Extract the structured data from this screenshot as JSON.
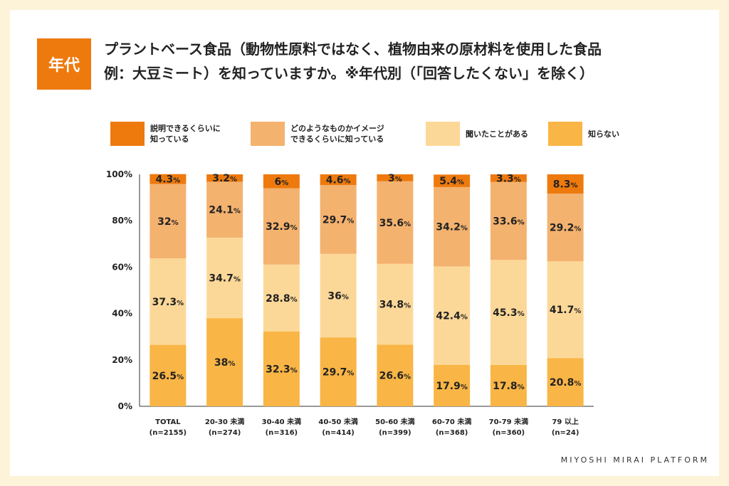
{
  "tag": "年代",
  "title_line1": "プラントベース食品（動物性原料ではなく、植物由来の原材料を使用した食品",
  "title_line2": "例：大豆ミート）を知っていますか。※年代別（「回答したくない」を除く）",
  "brand": "MIYOSHI MIRAI PLATFORM",
  "colors": [
    "#ee7a0e",
    "#f4b26f",
    "#fcd898",
    "#f9b545"
  ],
  "chart_data": {
    "type": "bar",
    "stacked": true,
    "ylim": [
      0,
      100
    ],
    "yticks": [
      "0%",
      "20%",
      "40%",
      "60%",
      "80%",
      "100%"
    ],
    "categories": [
      {
        "label": "TOTAL",
        "n": "(n=2155)"
      },
      {
        "label": "20-30 未満",
        "n": "(n=274)"
      },
      {
        "label": "30-40 未満",
        "n": "(n=316)"
      },
      {
        "label": "40-50 未満",
        "n": "(n=414)"
      },
      {
        "label": "50-60 未満",
        "n": "(n=399)"
      },
      {
        "label": "60-70 未満",
        "n": "(n=368)"
      },
      {
        "label": "70-79 未満",
        "n": "(n=360)"
      },
      {
        "label": "79 以上",
        "n": "(n=24)"
      }
    ],
    "series": [
      {
        "name": "知らない",
        "values": [
          26.5,
          38,
          32.3,
          29.7,
          26.6,
          17.9,
          17.8,
          20.8
        ]
      },
      {
        "name": "聞いたことがある",
        "values": [
          37.3,
          34.7,
          28.8,
          36,
          34.8,
          42.4,
          45.3,
          41.7
        ]
      },
      {
        "name": "どのようなものかイメージできるくらいに知っている",
        "values": [
          32,
          24.1,
          32.9,
          29.7,
          35.6,
          34.2,
          33.6,
          29.2
        ]
      },
      {
        "name": "説明できるくらいに知っている",
        "values": [
          4.3,
          3.2,
          6,
          4.6,
          3,
          5.4,
          3.3,
          8.3
        ]
      }
    ]
  },
  "legend": [
    {
      "line1": "説明できるくらいに",
      "line2": "知っている"
    },
    {
      "line1": "どのようなものかイメージ",
      "line2": "できるくらいに知っている"
    },
    {
      "line1": "聞いたことがある",
      "line2": ""
    },
    {
      "line1": "知らない",
      "line2": ""
    }
  ]
}
